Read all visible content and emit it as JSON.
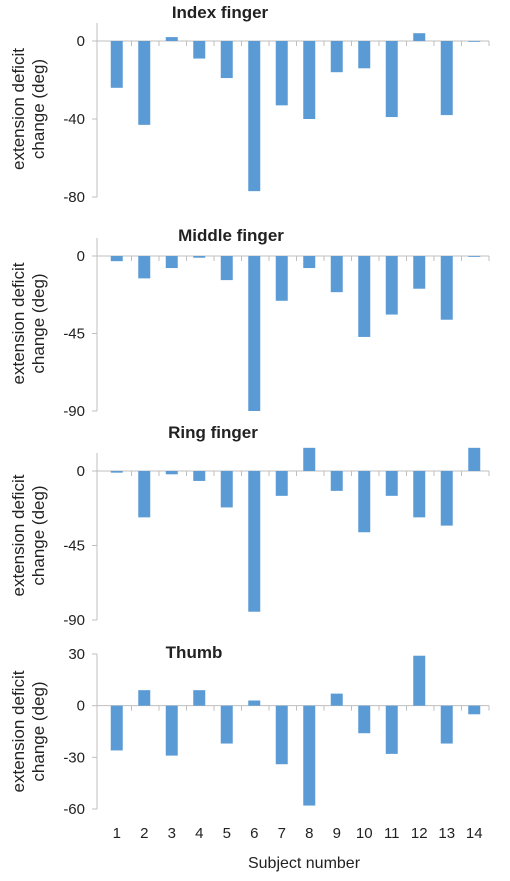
{
  "bar_color": "#5B9BD5",
  "x_label": "Subject number",
  "chart_data": [
    {
      "type": "bar",
      "title": "Index finger",
      "ylabel_lines": [
        "extension deficit",
        "change (deg)"
      ],
      "categories": [
        "1",
        "2",
        "3",
        "4",
        "5",
        "6",
        "7",
        "8",
        "9",
        "10",
        "11",
        "12",
        "13",
        "14"
      ],
      "values": [
        -24,
        -43,
        2,
        -9,
        -19,
        -77,
        -33,
        -40,
        -16,
        -14,
        -39,
        4,
        -38,
        0
      ],
      "ylim": [
        -80,
        0
      ],
      "yticks": [
        0,
        -40,
        -80
      ]
    },
    {
      "type": "bar",
      "title": "Middle finger",
      "ylabel_lines": [
        "extension deficit",
        "change (deg)"
      ],
      "categories": [
        "1",
        "2",
        "3",
        "4",
        "5",
        "6",
        "7",
        "8",
        "9",
        "10",
        "11",
        "12",
        "13",
        "14"
      ],
      "values": [
        -3,
        -13,
        -7,
        -1,
        -14,
        -90,
        -26,
        -7,
        -21,
        -47,
        -34,
        -19,
        -37,
        -0.5
      ],
      "ylim": [
        -90,
        0
      ],
      "yticks": [
        0,
        -45,
        -90
      ]
    },
    {
      "type": "bar",
      "title": "Ring finger",
      "ylabel_lines": [
        "extension deficit",
        "change (deg)"
      ],
      "categories": [
        "1",
        "2",
        "3",
        "4",
        "5",
        "6",
        "7",
        "8",
        "9",
        "10",
        "11",
        "12",
        "13",
        "14"
      ],
      "values": [
        -1,
        -28,
        -2,
        -6,
        -22,
        -85,
        -15,
        14,
        -12,
        -37,
        -15,
        -28,
        -33,
        14
      ],
      "ylim": [
        -90,
        0
      ],
      "yticks": [
        0,
        -45,
        -90
      ]
    },
    {
      "type": "bar",
      "title": "Thumb",
      "ylabel_lines": [
        "extension deficit",
        "change (deg)"
      ],
      "categories": [
        "1",
        "2",
        "3",
        "4",
        "5",
        "6",
        "7",
        "8",
        "9",
        "10",
        "11",
        "12",
        "13",
        "14"
      ],
      "values": [
        -26,
        9,
        -29,
        9,
        -22,
        3,
        -34,
        -58,
        7,
        -16,
        -28,
        29,
        -22,
        -5
      ],
      "ylim": [
        -60,
        30
      ],
      "yticks": [
        30,
        0,
        -30,
        -60
      ]
    }
  ]
}
